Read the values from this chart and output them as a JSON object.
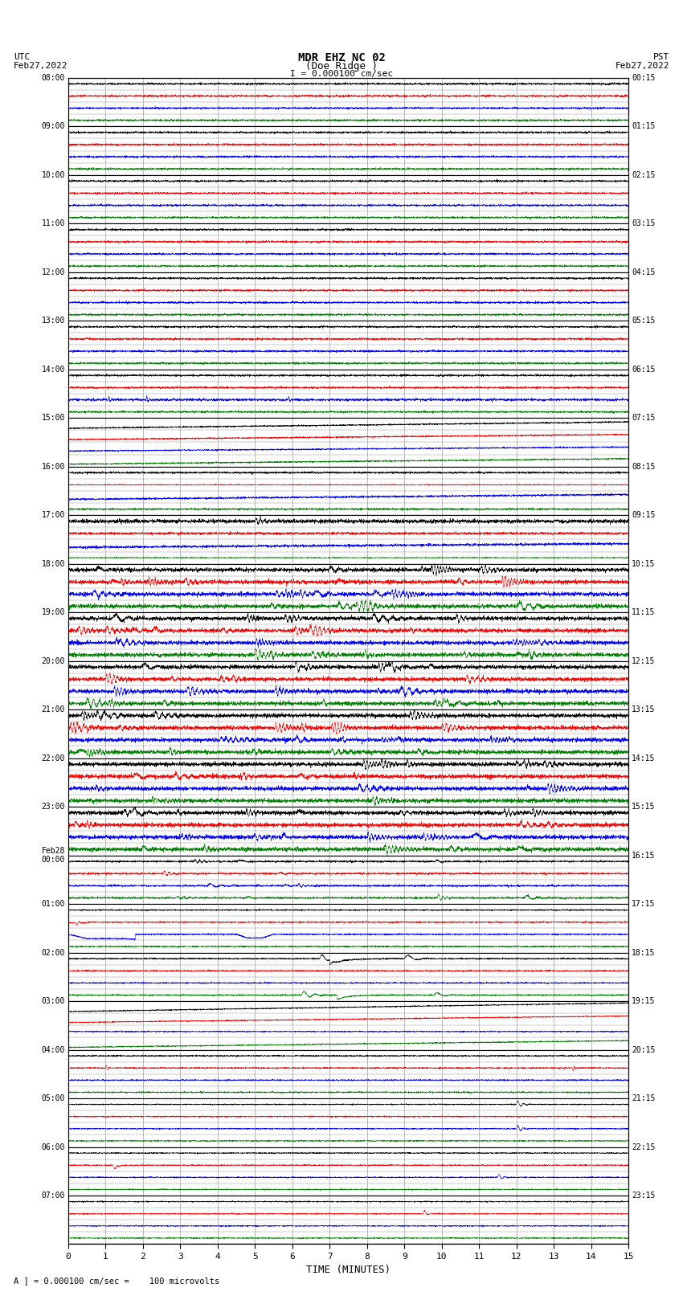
{
  "title_line1": "MDR EHZ NC 02",
  "title_line2": "(Doe Ridge )",
  "title_line3": "I = 0.000100 cm/sec",
  "left_header_line1": "UTC",
  "left_header_line2": "Feb27,2022",
  "right_header_line1": "PST",
  "right_header_line2": "Feb27,2022",
  "xlabel": "TIME (MINUTES)",
  "footer": "A ] = 0.000100 cm/sec =    100 microvolts",
  "utc_times": [
    "08:00",
    "09:00",
    "10:00",
    "11:00",
    "12:00",
    "13:00",
    "14:00",
    "15:00",
    "16:00",
    "17:00",
    "18:00",
    "19:00",
    "20:00",
    "21:00",
    "22:00",
    "23:00",
    "Feb28\n00:00",
    "01:00",
    "02:00",
    "03:00",
    "04:00",
    "05:00",
    "06:00",
    "07:00"
  ],
  "pst_times": [
    "00:15",
    "01:15",
    "02:15",
    "03:15",
    "04:15",
    "05:15",
    "06:15",
    "07:15",
    "08:15",
    "09:15",
    "10:15",
    "11:15",
    "12:15",
    "13:15",
    "14:15",
    "15:15",
    "16:15",
    "17:15",
    "18:15",
    "19:15",
    "20:15",
    "21:15",
    "22:15",
    "23:15"
  ],
  "n_rows": 24,
  "n_subtraces": 4,
  "x_min": 0,
  "x_max": 15,
  "x_ticks": [
    0,
    1,
    2,
    3,
    4,
    5,
    6,
    7,
    8,
    9,
    10,
    11,
    12,
    13,
    14,
    15
  ],
  "bg_color": "#ffffff",
  "grid_color": "#888888",
  "thick_grid_color": "#000000",
  "sub_colors": [
    "black",
    "red",
    "blue",
    "green"
  ],
  "fig_width": 8.5,
  "fig_height": 16.13,
  "dpi": 100
}
